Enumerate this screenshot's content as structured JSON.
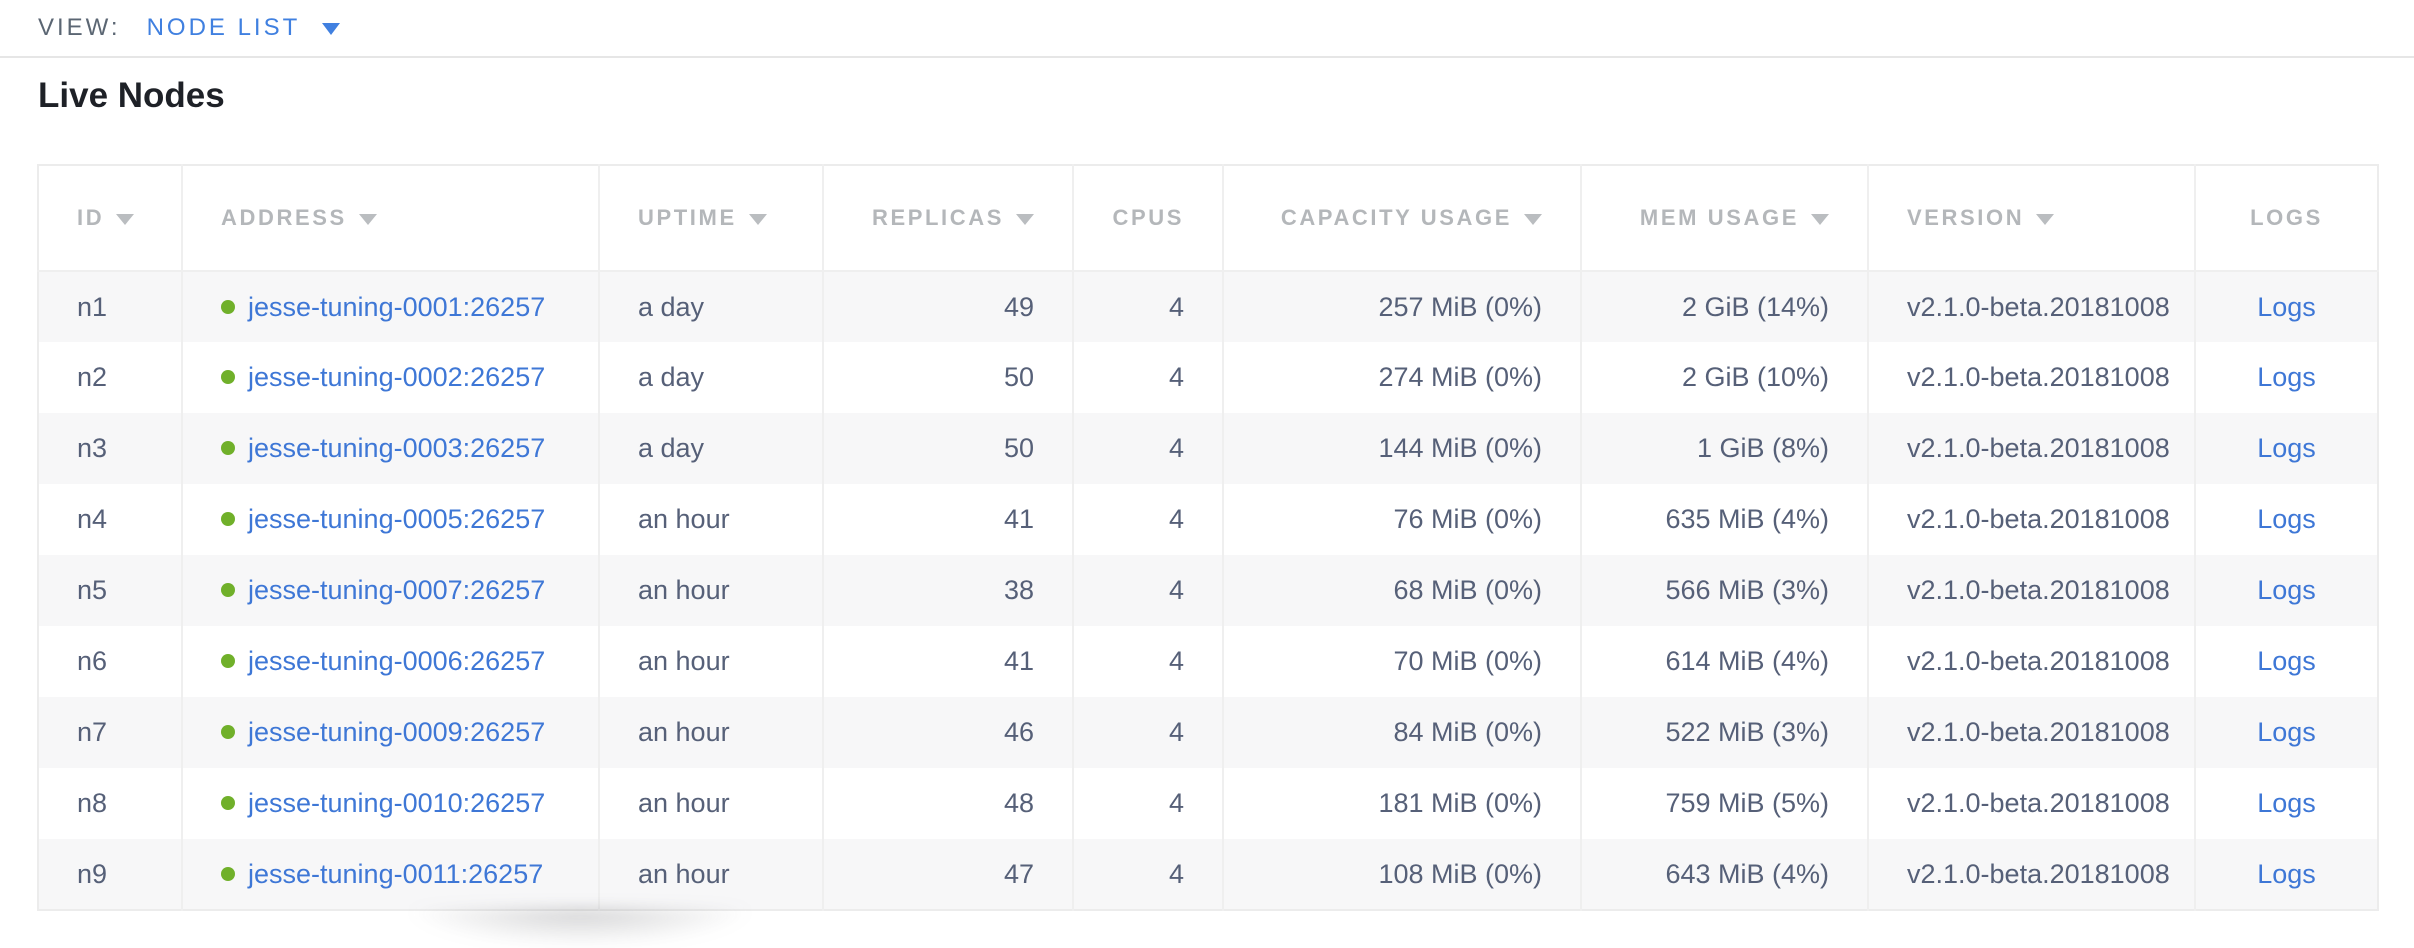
{
  "view_bar": {
    "label": "VIEW:",
    "selected": "NODE LIST"
  },
  "page": {
    "title": "Live Nodes"
  },
  "colors": {
    "accent-blue": "#4080e0",
    "link-blue": "#3e77d6",
    "status-green": "#70b02a",
    "header-gray": "#b4b7ba",
    "cell-text": "#566078"
  },
  "table": {
    "columns": [
      {
        "key": "id",
        "label": "ID",
        "sortable": true,
        "align": "left"
      },
      {
        "key": "address",
        "label": "ADDRESS",
        "sortable": true,
        "align": "left"
      },
      {
        "key": "uptime",
        "label": "UPTIME",
        "sortable": true,
        "align": "left"
      },
      {
        "key": "replicas",
        "label": "REPLICAS",
        "sortable": true,
        "align": "right"
      },
      {
        "key": "cpus",
        "label": "CPUS",
        "sortable": false,
        "align": "right"
      },
      {
        "key": "capacity",
        "label": "CAPACITY USAGE",
        "sortable": true,
        "align": "right"
      },
      {
        "key": "mem",
        "label": "MEM USAGE",
        "sortable": true,
        "align": "right"
      },
      {
        "key": "version",
        "label": "VERSION",
        "sortable": true,
        "align": "left"
      },
      {
        "key": "logs",
        "label": "LOGS",
        "sortable": false,
        "align": "center"
      }
    ],
    "rows": [
      {
        "id": "n1",
        "address": "jesse-tuning-0001:26257",
        "status": "live",
        "uptime": "a day",
        "replicas": "49",
        "cpus": "4",
        "capacity": "257 MiB (0%)",
        "mem": "2 GiB (14%)",
        "version": "v2.1.0-beta.20181008",
        "logs": "Logs"
      },
      {
        "id": "n2",
        "address": "jesse-tuning-0002:26257",
        "status": "live",
        "uptime": "a day",
        "replicas": "50",
        "cpus": "4",
        "capacity": "274 MiB (0%)",
        "mem": "2 GiB (10%)",
        "version": "v2.1.0-beta.20181008",
        "logs": "Logs"
      },
      {
        "id": "n3",
        "address": "jesse-tuning-0003:26257",
        "status": "live",
        "uptime": "a day",
        "replicas": "50",
        "cpus": "4",
        "capacity": "144 MiB (0%)",
        "mem": "1 GiB (8%)",
        "version": "v2.1.0-beta.20181008",
        "logs": "Logs"
      },
      {
        "id": "n4",
        "address": "jesse-tuning-0005:26257",
        "status": "live",
        "uptime": "an hour",
        "replicas": "41",
        "cpus": "4",
        "capacity": "76 MiB (0%)",
        "mem": "635 MiB (4%)",
        "version": "v2.1.0-beta.20181008",
        "logs": "Logs"
      },
      {
        "id": "n5",
        "address": "jesse-tuning-0007:26257",
        "status": "live",
        "uptime": "an hour",
        "replicas": "38",
        "cpus": "4",
        "capacity": "68 MiB (0%)",
        "mem": "566 MiB (3%)",
        "version": "v2.1.0-beta.20181008",
        "logs": "Logs"
      },
      {
        "id": "n6",
        "address": "jesse-tuning-0006:26257",
        "status": "live",
        "uptime": "an hour",
        "replicas": "41",
        "cpus": "4",
        "capacity": "70 MiB (0%)",
        "mem": "614 MiB (4%)",
        "version": "v2.1.0-beta.20181008",
        "logs": "Logs"
      },
      {
        "id": "n7",
        "address": "jesse-tuning-0009:26257",
        "status": "live",
        "uptime": "an hour",
        "replicas": "46",
        "cpus": "4",
        "capacity": "84 MiB (0%)",
        "mem": "522 MiB (3%)",
        "version": "v2.1.0-beta.20181008",
        "logs": "Logs"
      },
      {
        "id": "n8",
        "address": "jesse-tuning-0010:26257",
        "status": "live",
        "uptime": "an hour",
        "replicas": "48",
        "cpus": "4",
        "capacity": "181 MiB (0%)",
        "mem": "759 MiB (5%)",
        "version": "v2.1.0-beta.20181008",
        "logs": "Logs"
      },
      {
        "id": "n9",
        "address": "jesse-tuning-0011:26257",
        "status": "live",
        "uptime": "an hour",
        "replicas": "47",
        "cpus": "4",
        "capacity": "108 MiB (0%)",
        "mem": "643 MiB (4%)",
        "version": "v2.1.0-beta.20181008",
        "logs": "Logs"
      }
    ]
  }
}
